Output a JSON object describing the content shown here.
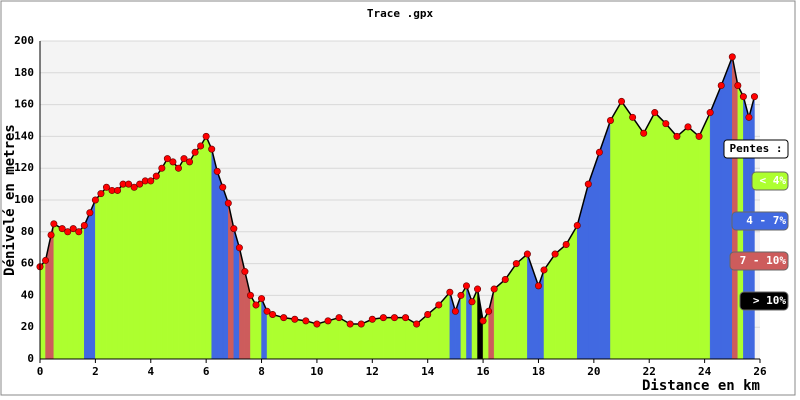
{
  "chart_data": {
    "type": "elevation",
    "title": "Trace .gpx",
    "x_label": "Distance en km",
    "y_label": "Dénivelé en metres",
    "x": [
      0,
      0.2,
      0.4,
      0.5,
      0.8,
      1.0,
      1.2,
      1.4,
      1.6,
      1.8,
      2.0,
      2.2,
      2.4,
      2.6,
      2.8,
      3.0,
      3.2,
      3.4,
      3.6,
      3.8,
      4.0,
      4.2,
      4.4,
      4.6,
      4.8,
      5.0,
      5.2,
      5.4,
      5.6,
      5.8,
      6.0,
      6.2,
      6.4,
      6.6,
      6.8,
      7.0,
      7.2,
      7.4,
      7.6,
      7.8,
      8.0,
      8.2,
      8.4,
      8.8,
      9.2,
      9.6,
      10.0,
      10.4,
      10.8,
      11.2,
      11.6,
      12.0,
      12.4,
      12.8,
      13.2,
      13.6,
      14.0,
      14.4,
      14.8,
      15.0,
      15.2,
      15.4,
      15.6,
      15.8,
      16.0,
      16.2,
      16.4,
      16.8,
      17.2,
      17.6,
      18.0,
      18.2,
      18.6,
      19.0,
      19.4,
      19.8,
      20.2,
      20.6,
      21.0,
      21.4,
      21.8,
      22.2,
      22.6,
      23.0,
      23.4,
      23.8,
      24.2,
      24.6,
      25.0,
      25.2,
      25.4,
      25.6,
      25.8
    ],
    "values": [
      58,
      62,
      78,
      85,
      82,
      80,
      82,
      80,
      84,
      92,
      100,
      104,
      108,
      106,
      106,
      110,
      110,
      108,
      110,
      112,
      112,
      115,
      120,
      126,
      124,
      120,
      126,
      124,
      130,
      134,
      140,
      132,
      118,
      108,
      98,
      82,
      70,
      55,
      40,
      34,
      38,
      30,
      28,
      26,
      25,
      24,
      22,
      24,
      26,
      22,
      22,
      25,
      26,
      26,
      26,
      22,
      28,
      34,
      42,
      30,
      40,
      46,
      36,
      44,
      24,
      30,
      44,
      50,
      60,
      66,
      46,
      56,
      66,
      72,
      84,
      110,
      130,
      150,
      162,
      152,
      142,
      155,
      148,
      140,
      146,
      140,
      155,
      172,
      190,
      172,
      165,
      152,
      165
    ],
    "xlim": [
      0,
      26
    ],
    "xticks": [
      0,
      2,
      4,
      6,
      8,
      10,
      12,
      14,
      16,
      18,
      20,
      22,
      24,
      26
    ],
    "ylim": [
      0,
      200
    ],
    "yticks": [
      0,
      20,
      40,
      60,
      80,
      100,
      120,
      140,
      160,
      180,
      200
    ],
    "grid": true,
    "line_color": "#000000",
    "point_color": "#ff0000",
    "legend": {
      "title": "Pentes :",
      "items": [
        {
          "label": "< 4%",
          "color": "#adff2f",
          "upper": 4
        },
        {
          "label": "4 - 7%",
          "color": "#4169e1",
          "upper": 7
        },
        {
          "label": "7 - 10%",
          "color": "#cd5c5c",
          "upper": 10
        },
        {
          "label": "> 10%",
          "color": "#000000"
        }
      ]
    }
  }
}
